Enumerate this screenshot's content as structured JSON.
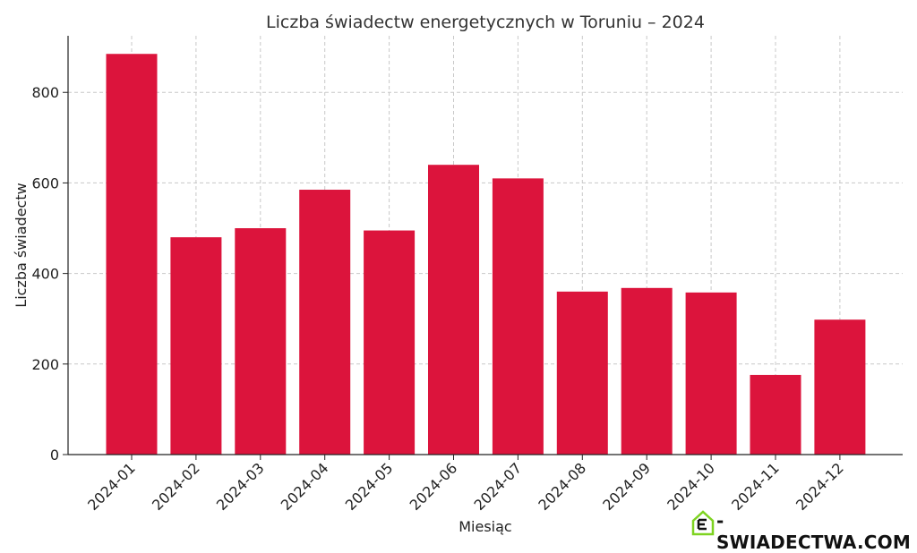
{
  "colors": {
    "bar": "#dc143c",
    "logo_accent": "#7ed321"
  },
  "logo": {
    "text": "-SWIADECTWA.COM",
    "icon": "house-e-icon"
  },
  "chart_data": {
    "type": "bar",
    "title": "Liczba świadectw energetycznych w Toruniu – 2024",
    "xlabel": "Miesiąc",
    "ylabel": "Liczba świadectw",
    "categories": [
      "2024-01",
      "2024-02",
      "2024-03",
      "2024-04",
      "2024-05",
      "2024-06",
      "2024-07",
      "2024-08",
      "2024-09",
      "2024-10",
      "2024-11",
      "2024-12"
    ],
    "values": [
      885,
      480,
      500,
      585,
      495,
      640,
      610,
      360,
      368,
      358,
      176,
      298
    ],
    "ylim": [
      0,
      925
    ],
    "yticks": [
      0,
      200,
      400,
      600,
      800
    ],
    "grid": true,
    "legend": "none"
  }
}
